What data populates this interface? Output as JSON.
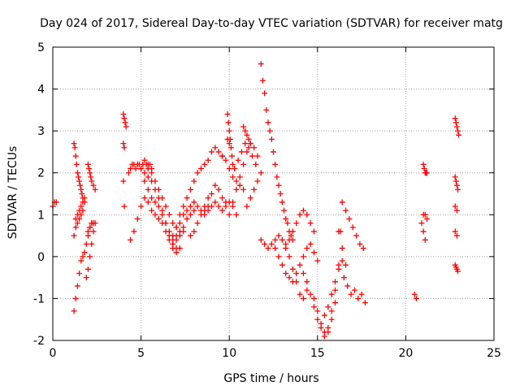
{
  "chart_data": {
    "type": "scatter",
    "title": "Day 024 of 2017, Sidereal Day-to-day VTEC variation (SDTVAR) for receiver matg",
    "xlabel": "GPS time / hours",
    "ylabel": "SDTVAR / TECUs",
    "xlim": [
      0,
      25
    ],
    "ylim": [
      -2,
      5
    ],
    "xticks": [
      0,
      5,
      10,
      15,
      20,
      25
    ],
    "yticks": [
      -2,
      -1,
      0,
      1,
      2,
      3,
      4,
      5
    ],
    "xtick_labels": [
      "0",
      "5",
      "10",
      "15",
      "20",
      "25"
    ],
    "ytick_labels": [
      "-2",
      "-1",
      "0",
      "1",
      "2",
      "3",
      "4",
      "5"
    ],
    "grid": true,
    "marker": "plus",
    "color": "#ff0000",
    "series": [
      {
        "name": "s1",
        "x": [
          0.0,
          0.1,
          0.2
        ],
        "y": [
          1.2,
          1.3,
          1.3
        ]
      },
      {
        "name": "s2",
        "x": [
          1.2,
          1.25,
          1.3,
          1.35,
          1.4,
          1.45,
          1.5,
          1.55,
          1.6,
          1.65,
          1.7
        ],
        "y": [
          2.7,
          2.6,
          2.4,
          2.2,
          2.0,
          1.9,
          1.8,
          1.7,
          1.6,
          1.5,
          1.4
        ]
      },
      {
        "name": "s3",
        "x": [
          1.2,
          1.3,
          1.4,
          1.5,
          1.6,
          1.7,
          1.8,
          1.9,
          2.0,
          2.1,
          2.2
        ],
        "y": [
          -1.3,
          -1.0,
          -0.7,
          -0.4,
          -0.1,
          0.0,
          0.1,
          0.3,
          0.5,
          0.7,
          0.8
        ]
      },
      {
        "name": "s4",
        "x": [
          1.2,
          1.3,
          1.4,
          1.5,
          1.6,
          1.7,
          1.8
        ],
        "y": [
          0.5,
          0.7,
          0.8,
          0.9,
          1.0,
          1.1,
          1.3
        ]
      },
      {
        "name": "s5",
        "x": [
          1.3,
          1.4,
          1.5,
          1.6,
          1.7,
          1.8
        ],
        "y": [
          0.9,
          1.0,
          1.1,
          1.2,
          1.3,
          1.4
        ]
      },
      {
        "name": "s6",
        "x": [
          1.9,
          2.0,
          2.1,
          2.2,
          2.3
        ],
        "y": [
          -0.5,
          -0.3,
          0.0,
          0.3,
          0.6
        ]
      },
      {
        "name": "s7",
        "x": [
          2.0,
          2.05,
          2.1,
          2.15,
          2.2,
          2.3,
          2.4
        ],
        "y": [
          2.2,
          2.1,
          2.0,
          1.9,
          1.8,
          1.7,
          1.6
        ]
      },
      {
        "name": "s8",
        "x": [
          2.0,
          2.1,
          2.2,
          2.3,
          2.4
        ],
        "y": [
          0.6,
          0.7,
          0.8,
          0.8,
          0.8
        ]
      },
      {
        "name": "s9",
        "x": [
          4.0,
          4.05,
          4.1,
          4.15
        ],
        "y": [
          3.4,
          3.3,
          3.2,
          3.1
        ]
      },
      {
        "name": "s10",
        "x": [
          4.0,
          4.05
        ],
        "y": [
          2.7,
          2.6
        ]
      },
      {
        "name": "s11",
        "x": [
          4.0,
          4.05
        ],
        "y": [
          1.8,
          1.2
        ]
      },
      {
        "name": "s12",
        "x": [
          4.3,
          4.4,
          4.5,
          4.6,
          4.7,
          4.8,
          4.9,
          5.0,
          5.1,
          5.2,
          5.3,
          5.4,
          5.5,
          5.6
        ],
        "y": [
          2.0,
          2.1,
          2.2,
          2.2,
          2.1,
          2.2,
          2.2,
          2.1,
          2.2,
          2.3,
          2.2,
          2.1,
          2.2,
          2.1
        ]
      },
      {
        "name": "s13",
        "x": [
          5.0,
          5.2,
          5.4,
          5.6,
          5.8,
          6.0,
          6.2,
          6.4,
          6.6,
          6.8,
          7.0
        ],
        "y": [
          2.1,
          2.0,
          1.9,
          1.8,
          1.6,
          1.4,
          1.1,
          0.8,
          0.5,
          0.3,
          0.2
        ]
      },
      {
        "name": "s14",
        "x": [
          4.4,
          4.6,
          4.8,
          5.0,
          5.2,
          5.4,
          5.6,
          5.8,
          6.0,
          6.2,
          6.4,
          6.6,
          6.8,
          7.0,
          7.2
        ],
        "y": [
          0.4,
          0.6,
          0.9,
          1.2,
          1.4,
          1.3,
          1.1,
          1.0,
          0.9,
          0.8,
          0.6,
          0.4,
          0.2,
          0.1,
          0.2
        ]
      },
      {
        "name": "s15",
        "x": [
          5.2,
          5.4,
          5.6,
          5.8,
          6.0,
          6.2,
          6.4,
          6.6,
          6.8,
          7.0,
          7.2,
          7.4
        ],
        "y": [
          1.8,
          1.6,
          1.4,
          1.3,
          1.2,
          1.0,
          0.8,
          0.6,
          0.5,
          0.4,
          0.5,
          0.6
        ]
      },
      {
        "name": "s16",
        "x": [
          5.4,
          5.6,
          5.8,
          6.0,
          6.2,
          6.4,
          6.6,
          6.8,
          7.0,
          7.2,
          7.4,
          7.6,
          7.8,
          8.0
        ],
        "y": [
          2.2,
          2.0,
          1.8,
          1.6,
          1.4,
          1.2,
          1.0,
          0.8,
          0.7,
          0.6,
          0.7,
          0.9,
          1.0,
          1.1
        ]
      },
      {
        "name": "s17",
        "x": [
          6.8,
          7.0,
          7.2,
          7.4,
          7.6,
          7.8,
          8.0,
          8.2,
          8.4,
          8.6,
          8.8,
          9.0,
          9.2,
          9.4,
          9.6
        ],
        "y": [
          0.4,
          0.7,
          1.0,
          1.2,
          1.4,
          1.6,
          1.8,
          2.0,
          2.1,
          2.2,
          2.3,
          2.5,
          2.6,
          2.5,
          2.4
        ]
      },
      {
        "name": "s18",
        "x": [
          6.8,
          7.0,
          7.2,
          7.4,
          7.6,
          7.8,
          8.0,
          8.2,
          8.4,
          8.6,
          8.8
        ],
        "y": [
          0.3,
          0.5,
          0.8,
          1.0,
          1.1,
          1.2,
          1.3,
          1.2,
          1.1,
          1.0,
          1.1
        ]
      },
      {
        "name": "s19",
        "x": [
          7.8,
          8.0,
          8.2,
          8.4,
          8.6,
          8.8,
          9.0,
          9.2,
          9.4,
          9.6,
          9.8
        ],
        "y": [
          0.5,
          0.6,
          0.8,
          1.0,
          1.2,
          1.4,
          1.5,
          1.7,
          1.6,
          1.4,
          1.3
        ]
      },
      {
        "name": "s20",
        "x": [
          8.6,
          8.8,
          9.0,
          9.2,
          9.4,
          9.6,
          9.8,
          10.0,
          10.2,
          10.4
        ],
        "y": [
          1.1,
          1.2,
          1.2,
          1.3,
          1.2,
          1.1,
          1.2,
          1.3,
          1.2,
          1.0
        ]
      },
      {
        "name": "s21",
        "x": [
          9.6,
          9.8,
          10.0,
          10.2,
          10.4,
          10.6,
          10.8
        ],
        "y": [
          2.4,
          2.3,
          2.1,
          1.9,
          1.8,
          1.7,
          1.6
        ]
      },
      {
        "name": "s22",
        "x": [
          9.9,
          9.95,
          10.0,
          10.05,
          10.1,
          10.15,
          10.2
        ],
        "y": [
          3.4,
          3.2,
          3.0,
          2.8,
          2.6,
          2.4,
          2.2
        ]
      },
      {
        "name": "s23",
        "x": [
          9.9,
          10.0
        ],
        "y": [
          2.8,
          2.7
        ]
      },
      {
        "name": "s24",
        "x": [
          10.0,
          10.2,
          10.4,
          10.6,
          10.8,
          11.0,
          11.2,
          11.4,
          11.6
        ],
        "y": [
          1.0,
          1.3,
          1.6,
          1.9,
          2.2,
          2.5,
          2.7,
          2.6,
          2.4
        ]
      },
      {
        "name": "s25",
        "x": [
          10.3,
          10.5,
          10.7,
          10.9,
          11.1,
          11.3,
          11.5
        ],
        "y": [
          2.1,
          2.3,
          2.5,
          2.7,
          2.6,
          2.4,
          2.2
        ]
      },
      {
        "name": "s26",
        "x": [
          10.8,
          10.9,
          11.0,
          11.1,
          11.2
        ],
        "y": [
          3.1,
          3.0,
          2.9,
          2.8,
          2.7
        ]
      },
      {
        "name": "s27",
        "x": [
          11.0,
          11.2,
          11.4,
          11.6,
          11.8
        ],
        "y": [
          1.2,
          1.4,
          1.6,
          1.8,
          2.0
        ]
      },
      {
        "name": "s28",
        "x": [
          11.8,
          11.9,
          12.0,
          12.1,
          12.2,
          12.3,
          12.4,
          12.5,
          12.6,
          12.7,
          12.8,
          12.9,
          13.0,
          13.1,
          13.2,
          13.3,
          13.4,
          13.5,
          13.6
        ],
        "y": [
          4.6,
          4.2,
          3.9,
          3.5,
          3.2,
          3.0,
          2.8,
          2.5,
          2.2,
          1.9,
          1.7,
          1.5,
          1.3,
          1.1,
          0.9,
          0.8,
          0.6,
          0.5,
          0.4
        ]
      },
      {
        "name": "s29",
        "x": [
          11.8,
          12.0,
          12.2,
          12.4,
          12.6,
          12.8,
          13.0,
          13.2,
          13.4,
          13.6,
          13.8,
          14.0,
          14.2,
          14.4,
          14.6,
          14.8
        ],
        "y": [
          0.4,
          0.3,
          0.2,
          0.3,
          0.4,
          0.5,
          0.4,
          0.3,
          0.4,
          0.6,
          0.8,
          1.0,
          1.1,
          1.0,
          0.8,
          0.6
        ]
      },
      {
        "name": "s30",
        "x": [
          12.6,
          12.8,
          13.0,
          13.2,
          13.4,
          13.6,
          13.8,
          14.0,
          14.2,
          14.4,
          14.6,
          14.8,
          15.0
        ],
        "y": [
          0.2,
          0.0,
          -0.2,
          -0.4,
          -0.5,
          -0.6,
          -0.4,
          -0.2,
          0.0,
          0.2,
          0.3,
          0.1,
          -0.1
        ]
      },
      {
        "name": "s31",
        "x": [
          13.2,
          13.4,
          13.6,
          13.8,
          14.0,
          14.2,
          14.4
        ],
        "y": [
          0.2,
          0.0,
          -0.3,
          -0.6,
          -0.9,
          -1.0,
          -0.8
        ]
      },
      {
        "name": "s32",
        "x": [
          14.2,
          14.4,
          14.6,
          14.8,
          15.0,
          15.2,
          15.4,
          15.6,
          15.8,
          16.0,
          16.2,
          16.4
        ],
        "y": [
          -0.4,
          -0.6,
          -0.9,
          -1.2,
          -1.5,
          -1.7,
          -1.8,
          -1.7,
          -1.3,
          -0.8,
          -0.2,
          0.2
        ]
      },
      {
        "name": "s33",
        "x": [
          14.8,
          15.0,
          15.2,
          15.4,
          15.6,
          15.8,
          16.0
        ],
        "y": [
          -1.0,
          -1.3,
          -1.6,
          -1.9,
          -1.8,
          -1.5,
          -1.1
        ]
      },
      {
        "name": "s34",
        "x": [
          15.4,
          15.6,
          15.8,
          16.0,
          16.2,
          16.4,
          16.6
        ],
        "y": [
          -1.4,
          -1.2,
          -0.9,
          -0.6,
          -0.3,
          -0.1,
          -0.2
        ]
      },
      {
        "name": "s35",
        "x": [
          16.2,
          16.3
        ],
        "y": [
          0.6,
          0.6
        ]
      },
      {
        "name": "s36",
        "x": [
          16.4,
          16.6,
          16.8,
          17.0,
          17.2,
          17.4,
          17.6
        ],
        "y": [
          1.3,
          1.1,
          0.9,
          0.7,
          0.5,
          0.3,
          0.2
        ]
      },
      {
        "name": "s37",
        "x": [
          16.5,
          16.7,
          16.9,
          17.1,
          17.3,
          17.5,
          17.7
        ],
        "y": [
          -0.5,
          -0.7,
          -0.9,
          -0.8,
          -1.0,
          -0.9,
          -1.1
        ]
      },
      {
        "name": "s38",
        "x": [
          20.5,
          20.6
        ],
        "y": [
          -0.9,
          -1.0
        ]
      },
      {
        "name": "s39",
        "x": [
          21.0,
          21.05,
          21.1,
          21.15,
          21.2
        ],
        "y": [
          2.2,
          2.1,
          2.0,
          2.0,
          2.0
        ]
      },
      {
        "name": "s40",
        "x": [
          20.9,
          21.0,
          21.1,
          21.2
        ],
        "y": [
          0.8,
          1.0,
          1.0,
          0.9
        ]
      },
      {
        "name": "s41",
        "x": [
          21.0,
          21.1
        ],
        "y": [
          0.6,
          0.4
        ]
      },
      {
        "name": "s42",
        "x": [
          22.8,
          22.85,
          22.9,
          22.95,
          23.0
        ],
        "y": [
          3.3,
          3.2,
          3.1,
          3.0,
          2.9
        ]
      },
      {
        "name": "s43",
        "x": [
          22.8,
          22.85,
          22.9,
          22.95
        ],
        "y": [
          1.9,
          1.8,
          1.7,
          1.6
        ]
      },
      {
        "name": "s44",
        "x": [
          22.8,
          22.9
        ],
        "y": [
          1.2,
          1.1
        ]
      },
      {
        "name": "s45",
        "x": [
          22.8,
          22.9
        ],
        "y": [
          0.6,
          0.5
        ]
      },
      {
        "name": "s46",
        "x": [
          22.8,
          22.85,
          22.9,
          22.95
        ],
        "y": [
          -0.2,
          -0.25,
          -0.3,
          -0.35
        ]
      }
    ]
  }
}
